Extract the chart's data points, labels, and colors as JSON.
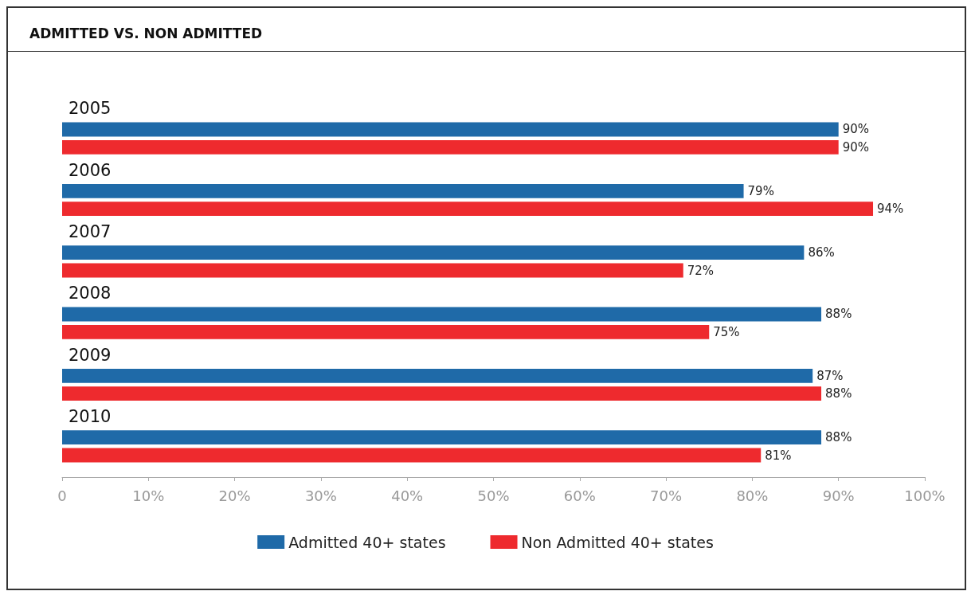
{
  "chart_data": {
    "type": "bar",
    "orientation": "horizontal",
    "title": "ADMITTED VS. NON ADMITTED",
    "categories": [
      "2005",
      "2006",
      "2007",
      "2008",
      "2009",
      "2010"
    ],
    "series": [
      {
        "name": "Admitted 40+ states",
        "color": "#1f6aa8",
        "values": [
          90,
          79,
          86,
          88,
          87,
          88
        ],
        "value_labels": [
          "90%",
          "79%",
          "86%",
          "88%",
          "87%",
          "88%"
        ]
      },
      {
        "name": "Non Admitted 40+ states",
        "color": "#ee2a2e",
        "values": [
          90,
          94,
          72,
          75,
          88,
          81
        ],
        "value_labels": [
          "90%",
          "94%",
          "72%",
          "75%",
          "88%",
          "81%"
        ]
      }
    ],
    "xlim": [
      0,
      100
    ],
    "xticks": [
      0,
      {
        "value": 10,
        "label": "10%"
      },
      {
        "value": 20,
        "label": "20%"
      },
      {
        "value": 30,
        "label": "30%"
      },
      {
        "value": 40,
        "label": "40%"
      },
      {
        "value": 50,
        "label": "50%"
      },
      {
        "value": 60,
        "label": "60%"
      },
      {
        "value": 70,
        "label": "70%"
      },
      {
        "value": 80,
        "label": "80%"
      },
      {
        "value": 90,
        "label": "90%"
      },
      {
        "value": 100,
        "label": "100%"
      }
    ],
    "grid": false,
    "legend": "bottom"
  }
}
